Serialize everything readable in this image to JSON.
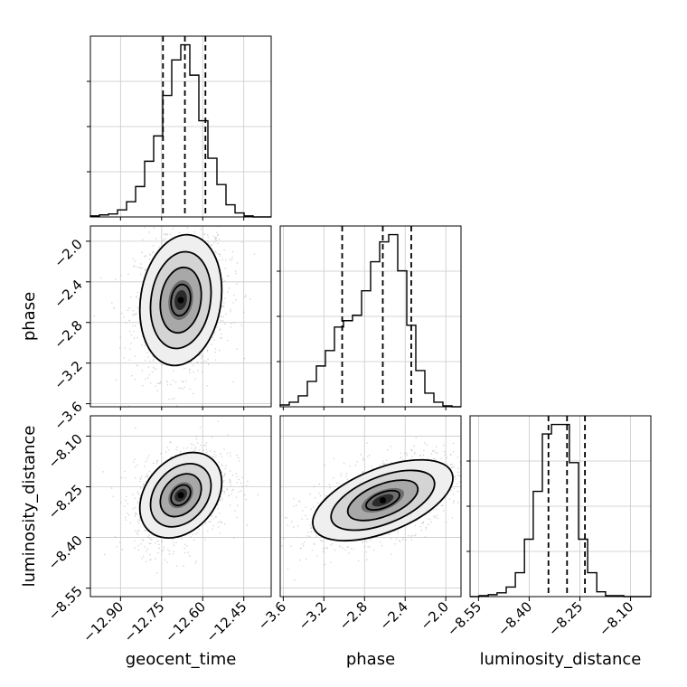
{
  "chart_data": {
    "type": "corner",
    "parameters": [
      {
        "key": "geocent_time",
        "label": "geocent_time",
        "ticks": [
          -12.9,
          -12.75,
          -12.6,
          -12.45
        ],
        "tick_labels": [
          "−12.90",
          "−12.75",
          "−12.60",
          "−12.45"
        ],
        "range": [
          -13.01,
          -12.35
        ],
        "median": -12.665,
        "quantiles": [
          -12.745,
          -12.59
        ]
      },
      {
        "key": "phase",
        "label": "phase",
        "ticks": [
          -3.6,
          -3.2,
          -2.8,
          -2.4,
          -2.0
        ],
        "tick_labels": [
          "−3.6",
          "−3.2",
          "−2.8",
          "−2.4",
          "−2.0"
        ],
        "range": [
          -3.63,
          -1.85
        ],
        "median": -2.62,
        "quantiles": [
          -3.02,
          -2.34
        ]
      },
      {
        "key": "luminosity_distance",
        "label": "luminosity_distance",
        "ticks": [
          -8.55,
          -8.4,
          -8.25,
          -8.1
        ],
        "tick_labels": [
          "−8.55",
          "−8.40",
          "−8.25",
          "−8.10"
        ],
        "range": [
          -8.575,
          -8.04
        ],
        "median": -8.288,
        "quantiles": [
          -8.343,
          -8.235
        ]
      }
    ],
    "histograms": {
      "geocent_time": {
        "bin_edges": [
          -13.01,
          -12.977,
          -12.944,
          -12.911,
          -12.878,
          -12.845,
          -12.812,
          -12.779,
          -12.746,
          -12.713,
          -12.68,
          -12.647,
          -12.614,
          -12.581,
          -12.548,
          -12.515,
          -12.482,
          -12.449,
          -12.416,
          -12.383,
          -12.35
        ],
        "counts": [
          1,
          2,
          3,
          7,
          15,
          30,
          55,
          80,
          120,
          155,
          170,
          140,
          95,
          58,
          32,
          12,
          4,
          1,
          0,
          0
        ]
      },
      "phase": {
        "bin_edges": [
          -3.63,
          -3.541,
          -3.452,
          -3.363,
          -3.274,
          -3.185,
          -3.096,
          -3.007,
          -2.918,
          -2.829,
          -2.74,
          -2.651,
          -2.562,
          -2.473,
          -2.384,
          -2.295,
          -2.206,
          -2.117,
          -2.028,
          -1.939,
          -1.85
        ],
        "counts": [
          2,
          5,
          12,
          28,
          45,
          62,
          88,
          95,
          101,
          128,
          160,
          182,
          190,
          150,
          90,
          40,
          15,
          5,
          1,
          0
        ]
      },
      "luminosity_distance": {
        "bin_edges": [
          -8.575,
          -8.548,
          -8.521,
          -8.495,
          -8.468,
          -8.441,
          -8.414,
          -8.388,
          -8.361,
          -8.334,
          -8.307,
          -8.281,
          -8.254,
          -8.227,
          -8.2,
          -8.174,
          -8.147,
          -8.12,
          -8.093,
          -8.067,
          -8.04
        ],
        "counts": [
          0,
          1,
          2,
          4,
          10,
          25,
          60,
          110,
          170,
          180,
          180,
          140,
          60,
          25,
          5,
          1,
          1,
          0,
          0,
          0
        ]
      }
    },
    "pairs": [
      {
        "x": "geocent_time",
        "y": "phase",
        "mean": [
          -12.68,
          -2.58
        ],
        "sd": [
          0.065,
          0.28
        ],
        "corr": 0.15
      },
      {
        "x": "geocent_time",
        "y": "luminosity_distance",
        "mean": [
          -12.68,
          -8.275
        ],
        "sd": [
          0.065,
          0.055
        ],
        "corr": 0.3
      },
      {
        "x": "phase",
        "y": "luminosity_distance",
        "mean": [
          -2.62,
          -8.29
        ],
        "sd": [
          0.3,
          0.052
        ],
        "corr": 0.55
      }
    ],
    "grid": true,
    "colors": {
      "line": "#000000",
      "points": "#9a9a9a"
    }
  }
}
